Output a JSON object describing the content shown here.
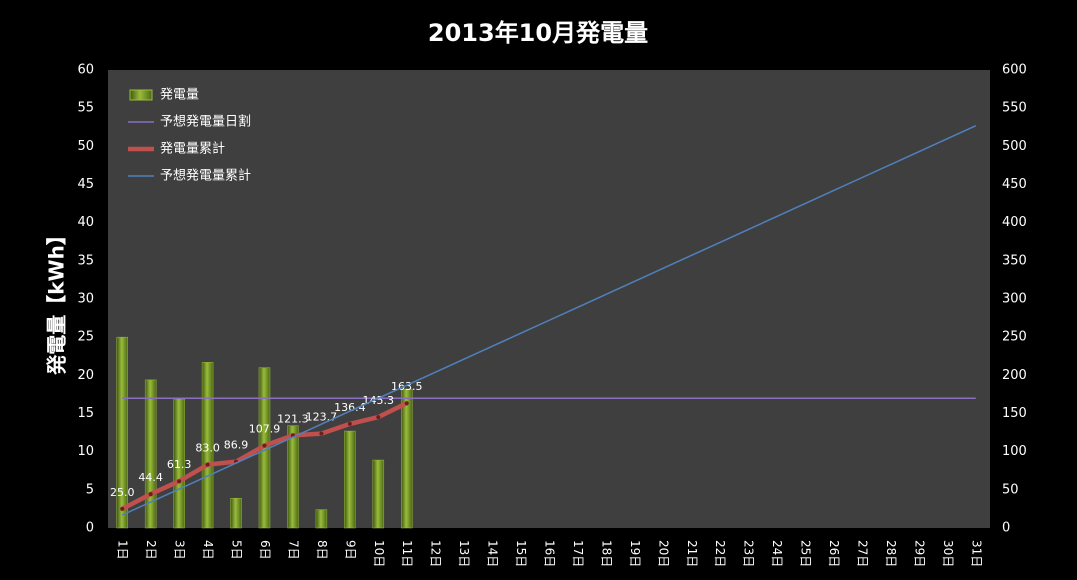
{
  "chart_data": {
    "type": "bar",
    "title": "2013年10月発電量",
    "y_label": "発電量【kWh】",
    "categories": [
      "1日",
      "2日",
      "3日",
      "4日",
      "5日",
      "6日",
      "7日",
      "8日",
      "9日",
      "10日",
      "11日",
      "12日",
      "13日",
      "14日",
      "15日",
      "16日",
      "17日",
      "18日",
      "19日",
      "20日",
      "21日",
      "22日",
      "23日",
      "24日",
      "25日",
      "26日",
      "27日",
      "28日",
      "29日",
      "30日",
      "31日"
    ],
    "series": [
      {
        "name": "発電量",
        "type": "bar",
        "color": "#9bbb3c",
        "values": [
          25.0,
          19.4,
          16.9,
          21.7,
          3.9,
          21.0,
          13.4,
          2.4,
          12.7,
          8.9,
          18.2,
          null,
          null,
          null,
          null,
          null,
          null,
          null,
          null,
          null,
          null,
          null,
          null,
          null,
          null,
          null,
          null,
          null,
          null,
          null,
          null
        ]
      },
      {
        "name": "予想発電量日割",
        "type": "line",
        "color": "#8a6fc0",
        "values": [
          17,
          17,
          17,
          17,
          17,
          17,
          17,
          17,
          17,
          17,
          17,
          17,
          17,
          17,
          17,
          17,
          17,
          17,
          17,
          17,
          17,
          17,
          17,
          17,
          17,
          17,
          17,
          17,
          17,
          17,
          17
        ]
      },
      {
        "name": "発電量累計",
        "type": "line",
        "axis": "y2",
        "color": "#c0504d",
        "values": [
          25.0,
          44.4,
          61.3,
          83.0,
          86.9,
          107.9,
          121.3,
          123.7,
          136.4,
          145.3,
          163.5,
          null,
          null,
          null,
          null,
          null,
          null,
          null,
          null,
          null,
          null,
          null,
          null,
          null,
          null,
          null,
          null,
          null,
          null,
          null,
          null
        ],
        "value_labels": [
          "25.0",
          "44.4",
          "61.3",
          "83.0",
          "86.9",
          "107.9",
          "121.3",
          "123.7",
          "136.4",
          "145.3",
          "163.5",
          null,
          null,
          null,
          null,
          null,
          null,
          null,
          null,
          null,
          null,
          null,
          null,
          null,
          null,
          null,
          null,
          null,
          null,
          null,
          null
        ]
      },
      {
        "name": "予想発電量累計",
        "type": "line",
        "axis": "y2",
        "color": "#4f81bd",
        "values": [
          17,
          34,
          51,
          68,
          85,
          102,
          119,
          136,
          153,
          170,
          187,
          204,
          221,
          238,
          255,
          272,
          289,
          306,
          323,
          340,
          357,
          374,
          391,
          408,
          425,
          442,
          459,
          476,
          493,
          510,
          527
        ]
      }
    ],
    "ylim": [
      0,
      60
    ],
    "yticks": [
      0,
      5,
      10,
      15,
      20,
      25,
      30,
      35,
      40,
      45,
      50,
      55,
      60
    ],
    "y2lim": [
      0,
      600
    ],
    "y2ticks": [
      0,
      50,
      100,
      150,
      200,
      250,
      300,
      350,
      400,
      450,
      500,
      550,
      600
    ],
    "grid": false,
    "legend": "upper left"
  }
}
